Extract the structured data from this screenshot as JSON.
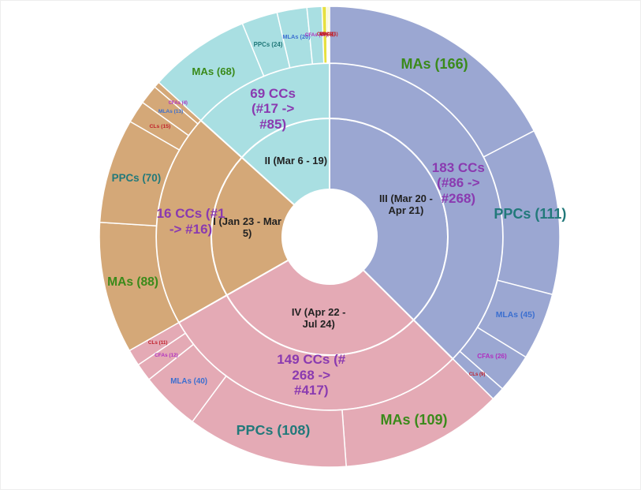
{
  "chart_data": {
    "type": "sunburst",
    "groups": [
      {
        "label": "III (Mar 20 - Apr 21)",
        "cc_label": "183 CCs (#86 -> #268)",
        "color": "#9ba7d2",
        "children": [
          {
            "label": "MAs (166)",
            "value": 166,
            "color": "#3a8a1a"
          },
          {
            "label": "PPCs (111)",
            "value": 111,
            "color": "#22797a"
          },
          {
            "label": "MLAs (45)",
            "value": 45,
            "color": "#3b6fd0"
          },
          {
            "label": "CFAs (26)",
            "value": 26,
            "color": "#b030c0"
          },
          {
            "label": "CLs (9)",
            "value": 9,
            "color": "#c0202a"
          }
        ]
      },
      {
        "label": "IV (Apr 22 - Jul 24)",
        "cc_label": "149 CCs (# 268 -> #417)",
        "color": "#e4aab5",
        "children": [
          {
            "label": "MAs (109)",
            "value": 109,
            "color": "#3a8a1a"
          },
          {
            "label": "PPCs (108)",
            "value": 108,
            "color": "#22797a"
          },
          {
            "label": "MLAs (40)",
            "value": 40,
            "color": "#3b6fd0"
          },
          {
            "label": "CFAs (12)",
            "value": 12,
            "color": "#b030c0"
          },
          {
            "label": "CLs (11)",
            "value": 11,
            "color": "#c0202a"
          }
        ]
      },
      {
        "label": "I (Jan 23 - Mar 5)",
        "cc_label": "16 CCs (#1 -> #16)",
        "color": "#d4a878",
        "children": [
          {
            "label": "MAs (88)",
            "value": 88,
            "color": "#3a8a1a"
          },
          {
            "label": "PPCs (70)",
            "value": 70,
            "color": "#22797a"
          },
          {
            "label": "CLs (15)",
            "value": 15,
            "color": "#c0202a"
          },
          {
            "label": "MLAs (13)",
            "value": 13,
            "color": "#3b6fd0"
          },
          {
            "label": "CFAs (4)",
            "value": 4,
            "color": "#b030c0"
          }
        ]
      },
      {
        "label": "II (Mar 6 - 19)",
        "cc_label": "69 CCs (#17 -> #85)",
        "color": "#a9dfe2",
        "children": [
          {
            "label": "MAs (68)",
            "value": 68,
            "color": "#3a8a1a"
          },
          {
            "label": "PPCs (24)",
            "value": 24,
            "color": "#22797a"
          },
          {
            "label": "MLAs (20)",
            "value": 20,
            "color": "#3b6fd0"
          },
          {
            "label": "CFAs (10)",
            "value": 10,
            "color": "#b030c0"
          },
          {
            "label": "CLs (3)",
            "value": 3,
            "color": "#c0202a",
            "fill": "#e6e040"
          },
          {
            "label": "MAs(1)",
            "value": 1,
            "color": "#c0202a",
            "fill": "#e6e040"
          },
          {
            "label": "PPCs(1)",
            "value": 1,
            "color": "#c0202a",
            "fill": "#e6e040"
          }
        ]
      }
    ]
  }
}
